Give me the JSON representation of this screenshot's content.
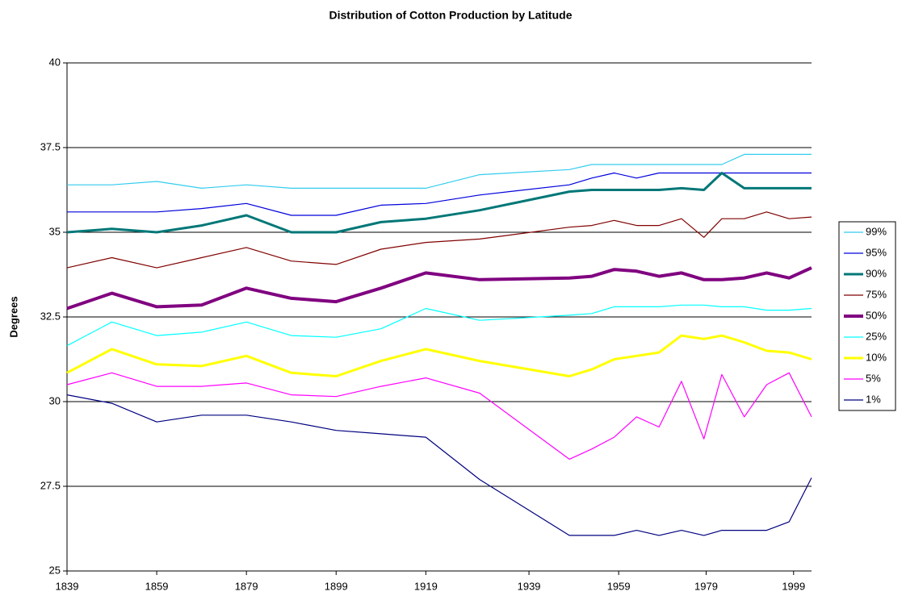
{
  "chart_data": {
    "type": "line",
    "title": "Distribution of Cotton Production by Latitude",
    "y_label": "Degrees",
    "x": [
      1839,
      1849,
      1859,
      1869,
      1879,
      1889,
      1899,
      1909,
      1919,
      1931,
      1951,
      1956,
      1961,
      1966,
      1971,
      1976,
      1981,
      1985,
      1990,
      1995,
      2000,
      2005
    ],
    "xlim": [
      1839,
      2005
    ],
    "xticks": [
      1839,
      1859,
      1879,
      1899,
      1919,
      {
        "value": 1942,
        "label": "1939"
      },
      {
        "value": 1962,
        "label": "1959"
      },
      {
        "value": 1981.5,
        "label": "1979"
      },
      {
        "value": 2001,
        "label": "1999"
      }
    ],
    "ylim": [
      25,
      40
    ],
    "yticks": [
      25,
      27.5,
      30,
      32.5,
      35,
      37.5,
      40
    ],
    "grid": true,
    "legend": "right",
    "series": [
      {
        "name": "99%",
        "color": "#33ccee",
        "width": 1.2,
        "values": [
          36.4,
          36.4,
          36.5,
          36.3,
          36.4,
          36.3,
          36.3,
          36.3,
          36.3,
          36.7,
          36.85,
          37.0,
          37.0,
          37.0,
          37.0,
          37.0,
          37.0,
          37.0,
          37.3,
          37.3,
          37.3,
          37.3
        ]
      },
      {
        "name": "95%",
        "color": "#0000dd",
        "width": 1.2,
        "values": [
          35.6,
          35.6,
          35.6,
          35.7,
          35.85,
          35.5,
          35.5,
          35.8,
          35.85,
          36.1,
          36.4,
          36.6,
          36.75,
          36.6,
          36.75,
          36.75,
          36.75,
          36.75,
          36.75,
          36.75,
          36.75,
          36.75
        ]
      },
      {
        "name": "90%",
        "color": "#007777",
        "width": 3,
        "values": [
          35.0,
          35.1,
          35.0,
          35.2,
          35.5,
          35.0,
          35.0,
          35.3,
          35.4,
          35.65,
          36.2,
          36.25,
          36.25,
          36.25,
          36.25,
          36.3,
          36.25,
          36.75,
          36.3,
          36.3,
          36.3,
          36.3
        ]
      },
      {
        "name": "75%",
        "color": "#800000",
        "width": 1.2,
        "values": [
          33.95,
          34.25,
          33.95,
          34.25,
          34.55,
          34.15,
          34.05,
          34.5,
          34.7,
          34.8,
          35.15,
          35.2,
          35.35,
          35.2,
          35.2,
          35.4,
          34.85,
          35.4,
          35.4,
          35.6,
          35.4,
          35.45
        ]
      },
      {
        "name": "50%",
        "color": "#800080",
        "width": 4,
        "values": [
          32.75,
          33.2,
          32.8,
          32.85,
          33.35,
          33.05,
          32.95,
          33.35,
          33.8,
          33.6,
          33.65,
          33.7,
          33.9,
          33.85,
          33.7,
          33.8,
          33.6,
          33.6,
          33.65,
          33.8,
          33.65,
          33.95
        ]
      },
      {
        "name": "25%",
        "color": "#00ffff",
        "width": 1.2,
        "values": [
          31.65,
          32.35,
          31.95,
          32.05,
          32.35,
          31.95,
          31.9,
          32.15,
          32.75,
          32.4,
          32.55,
          32.6,
          32.8,
          32.8,
          32.8,
          32.85,
          32.85,
          32.8,
          32.8,
          32.7,
          32.7,
          32.75
        ]
      },
      {
        "name": "10%",
        "color": "#ffff00",
        "width": 3,
        "values": [
          30.85,
          31.55,
          31.1,
          31.05,
          31.35,
          30.85,
          30.75,
          31.2,
          31.55,
          31.2,
          30.75,
          30.95,
          31.25,
          31.35,
          31.45,
          31.95,
          31.85,
          31.95,
          31.75,
          31.5,
          31.45,
          31.25
        ]
      },
      {
        "name": "5%",
        "color": "#ff00ff",
        "width": 1.2,
        "values": [
          30.5,
          30.85,
          30.45,
          30.45,
          30.55,
          30.2,
          30.15,
          30.45,
          30.7,
          30.25,
          28.3,
          28.6,
          28.95,
          29.55,
          29.25,
          30.6,
          28.9,
          30.8,
          29.55,
          30.5,
          30.85,
          29.55
        ]
      },
      {
        "name": "1%",
        "color": "#000080",
        "width": 1.2,
        "values": [
          30.2,
          29.95,
          29.4,
          29.6,
          29.6,
          29.4,
          29.15,
          29.05,
          28.95,
          27.7,
          26.05,
          26.05,
          26.05,
          26.2,
          26.05,
          26.2,
          26.05,
          26.2,
          26.2,
          26.2,
          26.45,
          27.75
        ]
      }
    ]
  }
}
